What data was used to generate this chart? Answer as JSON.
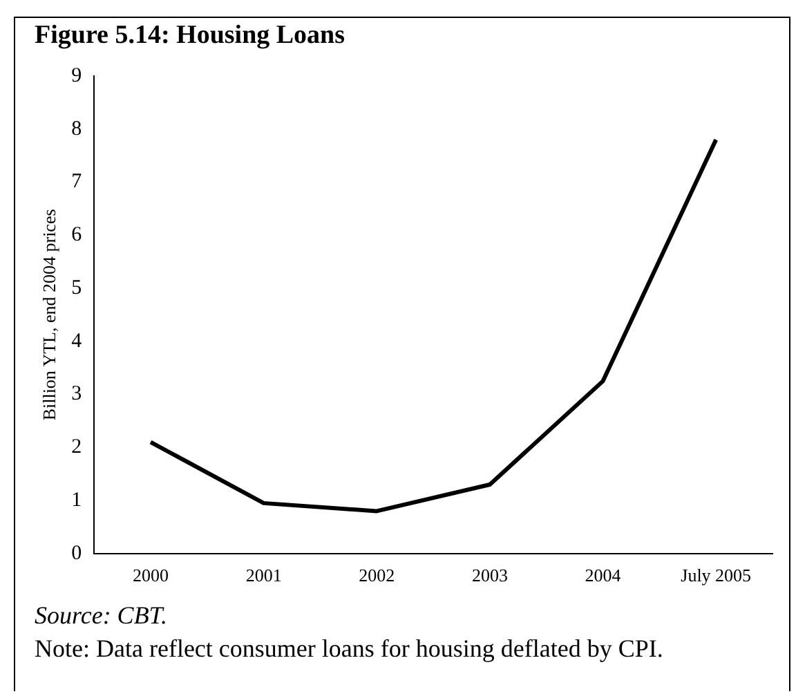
{
  "chart_data": {
    "type": "line",
    "title": "Figure 5.14: Housing Loans",
    "ylabel": "Billion YTL, end 2004 prices",
    "categories": [
      "2000",
      "2001",
      "2002",
      "2003",
      "2004",
      "July 2005"
    ],
    "series": [
      {
        "color": "#000000",
        "values": [
          2.1,
          0.95,
          0.8,
          1.3,
          3.25,
          7.8
        ]
      }
    ],
    "ylim": [
      0,
      9
    ],
    "yticks": [
      0,
      1,
      2,
      3,
      4,
      5,
      6,
      7,
      8,
      9
    ],
    "grid": false,
    "legend": false,
    "marker": "none",
    "line_style": "solid",
    "annotations": [
      "Source: CBT.",
      "Note: Data reflect consumer loans for housing deflated by CPI."
    ]
  }
}
